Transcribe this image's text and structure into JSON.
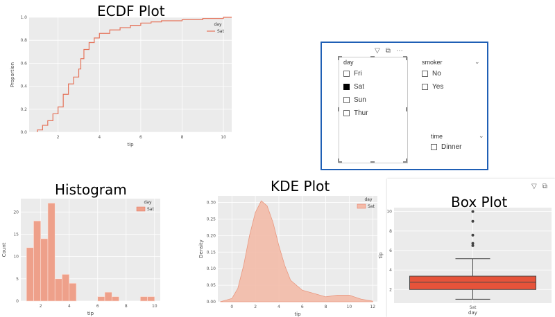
{
  "colors": {
    "plot_bg": "#ebebeb",
    "grid": "#ffffff",
    "accent": "#e5735a",
    "bar": "#eea08a",
    "kde_fill": "#f3bba9",
    "box": "#e6533a",
    "frame": "#1f5fb5"
  },
  "ecdf": {
    "title": "ECDF Plot",
    "legend_title": "day",
    "legend_item": "Sat",
    "xlabel": "tip",
    "ylabel": "Proportion",
    "xticks": [
      "2",
      "4",
      "6",
      "8",
      "10"
    ],
    "yticks": [
      "0.0",
      "0.2",
      "0.4",
      "0.6",
      "0.8",
      "1.0"
    ]
  },
  "slicer": {
    "header_icons": [
      "filter-icon",
      "focus-mode-icon",
      "more-options-icon"
    ],
    "day": {
      "label": "day",
      "items": [
        {
          "label": "Fri",
          "checked": false
        },
        {
          "label": "Sat",
          "checked": true
        },
        {
          "label": "Sun",
          "checked": false
        },
        {
          "label": "Thur",
          "checked": false
        }
      ]
    },
    "smoker": {
      "label": "smoker",
      "items": [
        {
          "label": "No",
          "checked": false
        },
        {
          "label": "Yes",
          "checked": false
        }
      ]
    },
    "time": {
      "label": "time",
      "items": [
        {
          "label": "Dinner",
          "checked": false
        }
      ]
    }
  },
  "histogram": {
    "title": "Histogram",
    "legend_title": "day",
    "legend_item": "Sat",
    "xlabel": "tip",
    "ylabel": "Count",
    "xticks": [
      "2",
      "4",
      "6",
      "8",
      "10"
    ],
    "yticks": [
      "0",
      "5",
      "10",
      "15",
      "20"
    ]
  },
  "kde": {
    "title": "KDE Plot",
    "legend_title": "day",
    "legend_item": "Sat",
    "xlabel": "tip",
    "ylabel": "Density",
    "xticks": [
      "0",
      "2",
      "4",
      "6",
      "8",
      "10",
      "12"
    ],
    "yticks": [
      "0.00",
      "0.05",
      "0.10",
      "0.15",
      "0.20",
      "0.25",
      "0.30"
    ]
  },
  "box": {
    "title": "Box Plot",
    "header_icons": [
      "filter-icon",
      "focus-mode-icon"
    ],
    "xlabel": "day",
    "ylabel": "tip",
    "category": "Sat",
    "xticks": [
      "Sat"
    ],
    "yticks": [
      "2",
      "4",
      "6",
      "8",
      "10"
    ]
  },
  "chart_data": [
    {
      "type": "line",
      "title": "ECDF Plot",
      "xlabel": "tip",
      "ylabel": "Proportion",
      "xlim": [
        0.6,
        10.4
      ],
      "ylim": [
        0,
        1
      ],
      "legend": "top-right",
      "series": [
        {
          "name": "Sat",
          "x": [
            1.0,
            1.25,
            1.5,
            1.75,
            2.0,
            2.25,
            2.5,
            2.75,
            3.0,
            3.1,
            3.25,
            3.5,
            3.75,
            4.0,
            4.5,
            5.0,
            5.5,
            6.0,
            6.5,
            7.0,
            8.0,
            9.0,
            10.0
          ],
          "y": [
            0.02,
            0.06,
            0.1,
            0.16,
            0.22,
            0.33,
            0.42,
            0.48,
            0.55,
            0.64,
            0.72,
            0.78,
            0.82,
            0.86,
            0.89,
            0.91,
            0.93,
            0.95,
            0.96,
            0.97,
            0.98,
            0.99,
            1.0
          ]
        }
      ]
    },
    {
      "type": "bar",
      "title": "Histogram",
      "xlabel": "tip",
      "ylabel": "Count",
      "xlim": [
        0.6,
        10.4
      ],
      "ylim": [
        0,
        23
      ],
      "legend": "top-right",
      "bin_width": 0.5,
      "series": [
        {
          "name": "Sat",
          "x": [
            1.0,
            1.5,
            2.0,
            2.5,
            3.0,
            3.5,
            4.0,
            4.5,
            5.0,
            6.0,
            6.5,
            7.0,
            8.0,
            9.0,
            9.5
          ],
          "values": [
            12,
            18,
            14,
            22,
            5,
            6,
            4,
            0,
            0,
            1,
            2,
            1,
            0,
            1,
            1
          ]
        }
      ]
    },
    {
      "type": "area",
      "title": "KDE Plot",
      "xlabel": "tip",
      "ylabel": "Density",
      "xlim": [
        -1.2,
        12.4
      ],
      "ylim": [
        0,
        0.32
      ],
      "legend": "top-right",
      "series": [
        {
          "name": "Sat",
          "x": [
            -1.0,
            0.0,
            0.5,
            1.0,
            1.5,
            2.0,
            2.5,
            3.0,
            3.5,
            4.0,
            4.5,
            5.0,
            6.0,
            7.0,
            8.0,
            9.0,
            10.0,
            11.0,
            12.0
          ],
          "y": [
            0.0,
            0.01,
            0.04,
            0.11,
            0.2,
            0.27,
            0.305,
            0.29,
            0.24,
            0.17,
            0.11,
            0.065,
            0.035,
            0.025,
            0.015,
            0.02,
            0.02,
            0.008,
            0.002
          ]
        }
      ]
    },
    {
      "type": "box",
      "title": "Box Plot",
      "xlabel": "day",
      "ylabel": "tip",
      "ylim": [
        0.6,
        10.4
      ],
      "categories": [
        "Sat"
      ],
      "stats": [
        {
          "whisker_low": 1.0,
          "q1": 2.0,
          "median": 2.75,
          "q3": 3.37,
          "whisker_high": 5.16,
          "outliers": [
            6.5,
            6.73,
            7.58,
            9.0,
            10.0
          ]
        }
      ]
    }
  ]
}
